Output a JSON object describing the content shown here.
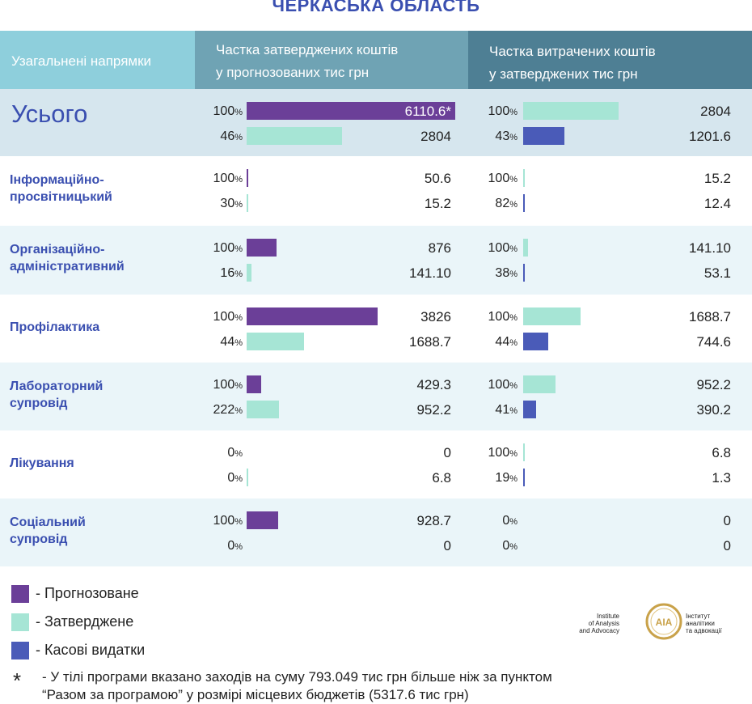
{
  "title": "ЧЕРКАСЬКА ОБЛАСТЬ",
  "header": {
    "col1": "Узагальнені  напрямки",
    "col2_line1": "Частка затверджених коштів",
    "col2_line2": "у прогнозованих тис грн",
    "col3_line1": "Частка витрачених коштів",
    "col3_line2": "у затверджених тис грн"
  },
  "colors": {
    "forecast": "#6b3f98",
    "approved": "#a6e5d5",
    "spent": "#4a5bb8",
    "header_light": "#8ecfdc",
    "header_mid": "#6fa3b4",
    "header_dark": "#4e7f94",
    "row_total": "#d6e6ee",
    "row_alt": "#eaf5f9"
  },
  "chart_data": {
    "type": "bar",
    "unit": "тис грн",
    "panels": [
      "Частка затверджених коштів у прогнозованих тис грн",
      "Частка витрачених коштів у затверджених тис грн"
    ],
    "rows": [
      {
        "label": "Усього",
        "left": {
          "top": {
            "pct": "100",
            "value": "6110.6*",
            "series": "forecast",
            "num": 6110.6
          },
          "bottom": {
            "pct": "46",
            "value": "2804",
            "series": "approved",
            "num": 2804
          }
        },
        "right": {
          "top": {
            "pct": "100",
            "value": "2804",
            "series": "approved",
            "num": 2804
          },
          "bottom": {
            "pct": "43",
            "value": "1201.6",
            "series": "spent",
            "num": 1201.6
          }
        }
      },
      {
        "label": "Інформаційно-просвітницький",
        "left": {
          "top": {
            "pct": "100",
            "value": "50.6",
            "series": "forecast",
            "num": 50.6
          },
          "bottom": {
            "pct": "30",
            "value": "15.2",
            "series": "approved",
            "num": 15.2
          }
        },
        "right": {
          "top": {
            "pct": "100",
            "value": "15.2",
            "series": "approved",
            "num": 15.2
          },
          "bottom": {
            "pct": "82",
            "value": "12.4",
            "series": "spent",
            "num": 12.4
          }
        }
      },
      {
        "label": "Організаційно-адміністративний",
        "left": {
          "top": {
            "pct": "100",
            "value": "876",
            "series": "forecast",
            "num": 876
          },
          "bottom": {
            "pct": "16",
            "value": "141.10",
            "series": "approved",
            "num": 141.1
          }
        },
        "right": {
          "top": {
            "pct": "100",
            "value": "141.10",
            "series": "approved",
            "num": 141.1
          },
          "bottom": {
            "pct": "38",
            "value": "53.1",
            "series": "spent",
            "num": 53.1
          }
        }
      },
      {
        "label": "Профілактика",
        "left": {
          "top": {
            "pct": "100",
            "value": "3826",
            "series": "forecast",
            "num": 3826
          },
          "bottom": {
            "pct": "44",
            "value": "1688.7",
            "series": "approved",
            "num": 1688.7
          }
        },
        "right": {
          "top": {
            "pct": "100",
            "value": "1688.7",
            "series": "approved",
            "num": 1688.7
          },
          "bottom": {
            "pct": "44",
            "value": "744.6",
            "series": "spent",
            "num": 744.6
          }
        }
      },
      {
        "label": "Лабораторний супровід",
        "left": {
          "top": {
            "pct": "100",
            "value": "429.3",
            "series": "forecast",
            "num": 429.3
          },
          "bottom": {
            "pct": "222",
            "value": "952.2",
            "series": "approved",
            "num": 952.2
          }
        },
        "right": {
          "top": {
            "pct": "100",
            "value": "952.2",
            "series": "approved",
            "num": 952.2
          },
          "bottom": {
            "pct": "41",
            "value": "390.2",
            "series": "spent",
            "num": 390.2
          }
        }
      },
      {
        "label": "Лікування",
        "left": {
          "top": {
            "pct": "0",
            "value": "0",
            "series": "forecast",
            "num": 0
          },
          "bottom": {
            "pct": "0",
            "value": "6.8",
            "series": "approved",
            "num": 6.8
          }
        },
        "right": {
          "top": {
            "pct": "100",
            "value": "6.8",
            "series": "approved",
            "num": 6.8
          },
          "bottom": {
            "pct": "19",
            "value": "1.3",
            "series": "spent",
            "num": 1.3
          }
        }
      },
      {
        "label": "Соціальний супровід",
        "left": {
          "top": {
            "pct": "100",
            "value": "928.7",
            "series": "forecast",
            "num": 928.7
          },
          "bottom": {
            "pct": "0",
            "value": "0",
            "series": "approved",
            "num": 0
          }
        },
        "right": {
          "top": {
            "pct": "0",
            "value": "0",
            "series": "approved",
            "num": 0
          },
          "bottom": {
            "pct": "0",
            "value": "0",
            "series": "spent",
            "num": 0
          }
        }
      }
    ],
    "legend": [
      {
        "series": "forecast",
        "label": "- Прогнозоване"
      },
      {
        "series": "approved",
        "label": "- Затверджене"
      },
      {
        "series": "spent",
        "label": "- Касові видатки"
      }
    ]
  },
  "footnote": {
    "mark": "*",
    "line1": "- У тілі програми вказано заходів на суму 793.049 тис грн більше ніж за пунктом",
    "line2": "“Разом за програмою” у розмірі місцевих бюджетів (5317.6 тис грн)"
  },
  "logo": {
    "en_line1": "Institute",
    "en_line2": "of Analysis",
    "en_line3": "and Advocacy",
    "ua_line1": "Інститут",
    "ua_line2": "аналітики",
    "ua_line3": "та адвокації",
    "mark": "AIA"
  }
}
